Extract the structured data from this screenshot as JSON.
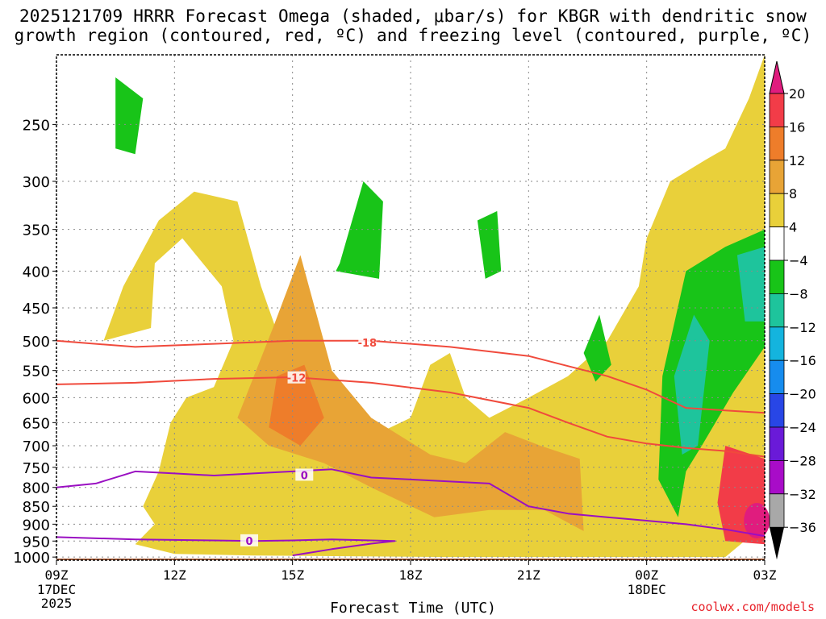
{
  "header": {
    "title_line1": "2025121709 HRRR Forecast Omega (shaded, μbar/s) for KBGR with dendritic snow",
    "title_line2": "growth region (contoured, red, ºC) and freezing level (contoured, purple, ºC)"
  },
  "footer": {
    "xlabel": "Forecast Time (UTC)",
    "credit": "coolwx.com/models"
  },
  "colors": {
    "ground": "#a0522d",
    "snow_growth_line": "#f04a3c",
    "freezing_line": "#9a0fc2",
    "credit": "#e8222a"
  },
  "chart_data": {
    "type": "time-height contour",
    "title": "2025121709 HRRR Forecast Omega (shaded, μbar/s) for KBGR with dendritic snow growth region (contoured, red, ºC) and freezing level (contoured, purple, ºC)",
    "xlabel": "Forecast Time (UTC)",
    "ylabel": "",
    "xlim": [
      0,
      18
    ],
    "ylim_hpa": [
      1010,
      200
    ],
    "x_ticks": [
      {
        "hour": 0,
        "label": "09Z",
        "date": "17DEC",
        "year": "2025"
      },
      {
        "hour": 3,
        "label": "12Z"
      },
      {
        "hour": 6,
        "label": "15Z"
      },
      {
        "hour": 9,
        "label": "18Z"
      },
      {
        "hour": 12,
        "label": "21Z"
      },
      {
        "hour": 15,
        "label": "00Z",
        "date": "18DEC"
      },
      {
        "hour": 18,
        "label": "03Z"
      }
    ],
    "y_ticks": [
      250,
      300,
      350,
      400,
      450,
      500,
      550,
      600,
      650,
      700,
      750,
      800,
      850,
      900,
      950,
      1000
    ],
    "colorbar": {
      "labels": [
        "20",
        "16",
        "12",
        "8",
        "4",
        "−4",
        "−8",
        "−12",
        "−16",
        "−20",
        "−24",
        "−28",
        "−32",
        "−36"
      ],
      "colors": [
        "#f23c48",
        "#ee7d2a",
        "#e8a436",
        "#e9d03a",
        "#ffffff",
        "#18c418",
        "#1ec49c",
        "#14b4de",
        "#168cee",
        "#2846e6",
        "#6a1ad8",
        "#a80cc8",
        "#a8a8a8"
      ],
      "top_color": "#e01c7e",
      "bottom_color": "#000000"
    },
    "series": [
      {
        "name": "-18",
        "kind": "dendritic snow growth",
        "color": "#f04a3c",
        "points": [
          [
            0,
            500
          ],
          [
            2,
            510
          ],
          [
            4,
            505
          ],
          [
            6,
            500
          ],
          [
            8,
            500
          ],
          [
            10,
            510
          ],
          [
            12,
            525
          ],
          [
            14,
            560
          ],
          [
            15,
            585
          ],
          [
            16,
            620
          ],
          [
            17,
            625
          ],
          [
            18,
            630
          ]
        ]
      },
      {
        "name": "-12",
        "kind": "dendritic snow growth",
        "color": "#f04a3c",
        "points": [
          [
            0,
            575
          ],
          [
            2,
            572
          ],
          [
            4,
            565
          ],
          [
            6,
            562
          ],
          [
            8,
            572
          ],
          [
            10,
            590
          ],
          [
            12,
            620
          ],
          [
            13,
            650
          ],
          [
            14,
            680
          ],
          [
            15,
            695
          ],
          [
            16,
            705
          ],
          [
            17,
            712
          ],
          [
            18,
            725
          ]
        ]
      },
      {
        "name": "0",
        "kind": "freezing level",
        "color": "#9a0fc2",
        "points": [
          [
            0,
            800
          ],
          [
            1,
            790
          ],
          [
            2,
            760
          ],
          [
            3,
            765
          ],
          [
            4,
            770
          ],
          [
            5,
            765
          ],
          [
            6,
            760
          ],
          [
            7,
            755
          ],
          [
            8,
            775
          ],
          [
            9,
            780
          ],
          [
            10,
            785
          ],
          [
            11,
            790
          ],
          [
            12,
            850
          ],
          [
            13,
            870
          ],
          [
            14,
            880
          ],
          [
            15,
            890
          ],
          [
            16,
            900
          ],
          [
            17,
            915
          ],
          [
            18,
            935
          ]
        ]
      },
      {
        "name": "0",
        "kind": "freezing level (lower)",
        "color": "#9a0fc2",
        "points": [
          [
            0,
            938
          ],
          [
            2,
            945
          ],
          [
            4,
            948
          ],
          [
            5,
            950
          ],
          [
            6,
            948
          ],
          [
            7,
            945
          ],
          [
            8.6,
            950
          ],
          [
            8,
            958
          ],
          [
            7,
            975
          ],
          [
            6,
            995
          ]
        ]
      }
    ],
    "line_labels": [
      {
        "text": "-18",
        "at": [
          7.9,
          503
        ],
        "color": "#f04a3c"
      },
      {
        "text": "-12",
        "at": [
          6.1,
          563
        ],
        "color": "#f04a3c"
      },
      {
        "text": "0",
        "at": [
          6.3,
          769
        ],
        "color": "#9a0fc2"
      },
      {
        "text": "0",
        "at": [
          4.9,
          949
        ],
        "color": "#9a0fc2"
      }
    ],
    "shaded_regions": [
      {
        "level": "4 to 8",
        "hpa_hours": [
          [
            1.2,
            500
          ],
          [
            1.7,
            420
          ],
          [
            2.6,
            340
          ],
          [
            3.5,
            310
          ],
          [
            4.6,
            320
          ],
          [
            5.2,
            420
          ],
          [
            6,
            560
          ],
          [
            7,
            620
          ],
          [
            8,
            680
          ],
          [
            9,
            640
          ],
          [
            9.5,
            540
          ],
          [
            10,
            520
          ],
          [
            10.4,
            600
          ],
          [
            11,
            640
          ],
          [
            12,
            600
          ],
          [
            13,
            560
          ],
          [
            14,
            500
          ],
          [
            14.8,
            420
          ],
          [
            15,
            360
          ],
          [
            15.6,
            300
          ],
          [
            16.5,
            280
          ],
          [
            17,
            270
          ],
          [
            17.6,
            230
          ],
          [
            18,
            200
          ],
          [
            18,
            900
          ],
          [
            17,
            1000
          ],
          [
            10,
            1000
          ],
          [
            5,
            995
          ],
          [
            3,
            990
          ],
          [
            2,
            960
          ],
          [
            2.5,
            900
          ],
          [
            2.2,
            850
          ],
          [
            2.6,
            760
          ],
          [
            2.9,
            650
          ],
          [
            3.3,
            600
          ],
          [
            4,
            580
          ],
          [
            4.5,
            500
          ],
          [
            4.2,
            420
          ],
          [
            3.2,
            360
          ],
          [
            2.5,
            390
          ],
          [
            2.4,
            480
          ]
        ]
      },
      {
        "level": "8 to 12",
        "hpa_hours": [
          [
            5.5,
            480
          ],
          [
            6.2,
            380
          ],
          [
            7,
            550
          ],
          [
            8,
            640
          ],
          [
            9.5,
            720
          ],
          [
            10.4,
            740
          ],
          [
            11.4,
            670
          ],
          [
            12.3,
            700
          ],
          [
            13.3,
            730
          ],
          [
            13.4,
            920
          ],
          [
            12.4,
            860
          ],
          [
            11,
            860
          ],
          [
            9.6,
            880
          ],
          [
            8,
            800
          ],
          [
            6.8,
            740
          ],
          [
            5.4,
            700
          ],
          [
            4.6,
            640
          ]
        ]
      },
      {
        "level": "12 to 16",
        "hpa_hours": [
          [
            5.6,
            560
          ],
          [
            6.3,
            540
          ],
          [
            6.8,
            640
          ],
          [
            6.2,
            700
          ],
          [
            5.4,
            660
          ]
        ]
      },
      {
        "level": "12 to 20 (local max)",
        "hpa_hours": [
          [
            17,
            700
          ],
          [
            18,
            730
          ],
          [
            18,
            960
          ],
          [
            17,
            950
          ],
          [
            16.8,
            840
          ]
        ]
      },
      {
        "level": "-4 to -8",
        "hpa_hours": [
          [
            1.5,
            215
          ],
          [
            2.2,
            230
          ],
          [
            2,
            275
          ],
          [
            1.5,
            270
          ]
        ]
      },
      {
        "level": "-4 to -8",
        "hpa_hours": [
          [
            7.2,
            390
          ],
          [
            7.8,
            300
          ],
          [
            8.3,
            320
          ],
          [
            8.2,
            410
          ],
          [
            7.1,
            400
          ]
        ]
      },
      {
        "level": "-4 to -8",
        "hpa_hours": [
          [
            10.7,
            340
          ],
          [
            11.2,
            330
          ],
          [
            11.3,
            400
          ],
          [
            10.9,
            410
          ]
        ]
      },
      {
        "level": "-4 to -8",
        "hpa_hours": [
          [
            13.4,
            520
          ],
          [
            13.8,
            460
          ],
          [
            14.1,
            540
          ],
          [
            13.7,
            570
          ]
        ]
      },
      {
        "level": "-4 to -12 (-16 core)",
        "hpa_hours": [
          [
            15.4,
            560
          ],
          [
            16,
            400
          ],
          [
            17,
            370
          ],
          [
            18,
            350
          ],
          [
            18,
            510
          ],
          [
            17.2,
            590
          ],
          [
            16.4,
            700
          ],
          [
            16,
            760
          ],
          [
            15.8,
            880
          ],
          [
            15.3,
            780
          ]
        ]
      }
    ]
  }
}
